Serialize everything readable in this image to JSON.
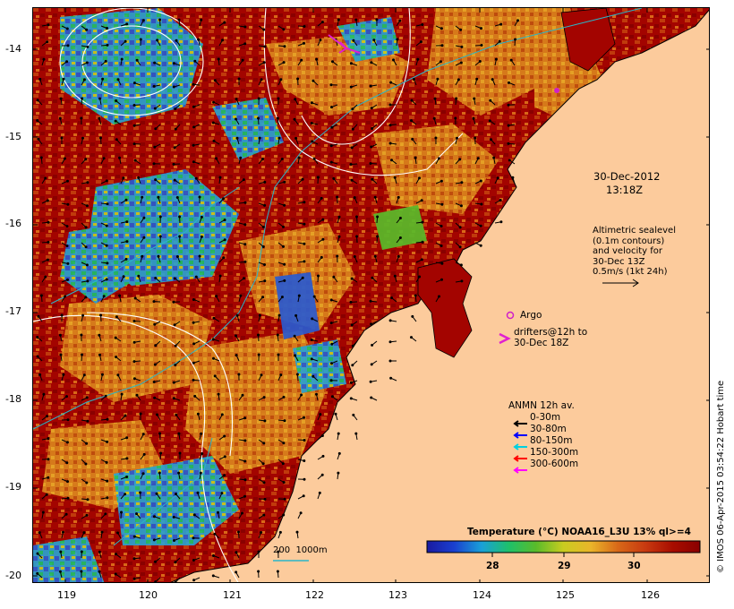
{
  "map": {
    "lon_ticks": [
      "119",
      "120",
      "121",
      "122",
      "123",
      "124",
      "125",
      "126"
    ],
    "lat_ticks": [
      "-14",
      "-15",
      "-16",
      "-17",
      "-18",
      "-19",
      "-20"
    ],
    "lon_range": [
      118.63,
      126.75
    ],
    "lat_range": [
      -20.1,
      -13.6
    ],
    "ocean_palette": [
      "#8a0000",
      "#a80d00",
      "#c83a10",
      "#d86818",
      "#e08a18",
      "#eab52a",
      "#c9cc20",
      "#5abb2a",
      "#1ec16a",
      "#19a0d8",
      "#2a5ad0",
      "#1a1aa0"
    ],
    "land_color": "#fccb9c",
    "contour_color": "#ffffff",
    "isobath_color": "#2ab6c8"
  },
  "stamp": {
    "date": "30-Dec-2012",
    "time": "13:18Z"
  },
  "altimetry_note": {
    "lines": [
      "Altimetric sealevel",
      "(0.1m contours)",
      "and velocity for",
      "30-Dec 13Z",
      "0.5m/s (1kt 24h)"
    ]
  },
  "argo": {
    "label": "Argo",
    "color": "#d020c8"
  },
  "drifters": {
    "lines": [
      "drifters@12h to",
      "30-Dec 18Z"
    ],
    "color": "#e020d0"
  },
  "anmn": {
    "title": "ANMN 12h av.",
    "items": [
      {
        "label": "0-30m",
        "color": "#000000"
      },
      {
        "label": "30-80m",
        "color": "#0000ff"
      },
      {
        "label": "80-150m",
        "color": "#00d0e0"
      },
      {
        "label": "150-300m",
        "color": "#ff0000"
      },
      {
        "label": "300-600m",
        "color": "#ff00ff"
      }
    ]
  },
  "isobath_label": "200  1000m",
  "colorbar": {
    "title": "Temperature (°C) NOAA16_L3U 13% ql>=4",
    "ticks": [
      "28",
      "29",
      "30"
    ],
    "stops": [
      "#1a1aa0",
      "#1a40d0",
      "#19a0d8",
      "#1ec16a",
      "#5abb2a",
      "#c9cc20",
      "#eab52a",
      "#d86818",
      "#c83a10",
      "#a80d00",
      "#8a0000"
    ]
  },
  "credit": "© IMOS 06-Apr-2015 03:54:22 Hobart time"
}
